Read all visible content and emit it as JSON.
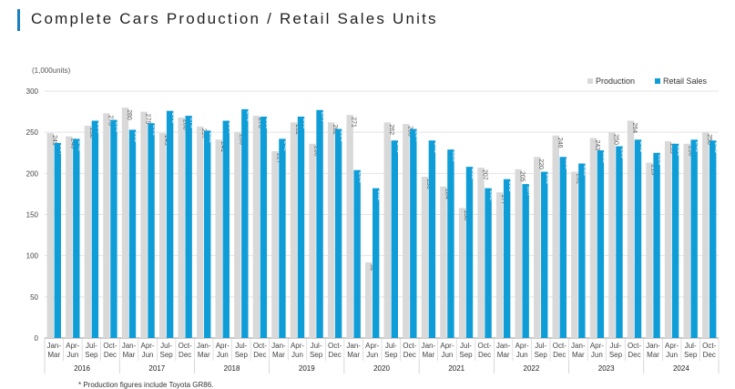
{
  "title": "Complete Cars Production / Retail Sales Units",
  "footnote": "* Production figures include Toyota GR86.",
  "chart_data": {
    "type": "bar",
    "unit_label": "(1,000units)",
    "ylim": [
      0,
      300
    ],
    "yticks": [
      0,
      50,
      100,
      150,
      200,
      250,
      300
    ],
    "quarter_labels": [
      [
        "Jan-",
        "Mar"
      ],
      [
        "Apr-",
        "Jun"
      ],
      [
        "Jul-",
        "Sep"
      ],
      [
        "Oct-",
        "Dec"
      ]
    ],
    "years": [
      "2016",
      "2017",
      "2018",
      "2019",
      "2020",
      "2021",
      "2022",
      "2023",
      "2024"
    ],
    "legend_position": "top-right",
    "series": [
      {
        "name": "Production",
        "color": "#d9d9d9",
        "values": [
          249,
          245,
          258,
          273,
          280,
          275,
          249,
          268,
          257,
          241,
          250,
          270,
          227,
          262,
          236,
          262,
          271,
          92,
          262,
          260,
          196,
          184,
          158,
          207,
          177,
          205,
          220,
          246,
          202,
          243,
          250,
          264,
          213,
          239,
          236,
          250
        ]
      },
      {
        "name": "Retail Sales",
        "color": "#0f9dd8",
        "values": [
          237,
          242,
          264,
          265,
          253,
          261,
          276,
          270,
          252,
          264,
          278,
          269,
          242,
          269,
          277,
          254,
          204,
          182,
          240,
          254,
          240,
          229,
          208,
          182,
          193,
          187,
          202,
          220,
          212,
          228,
          233,
          241,
          225,
          236,
          241,
          240
        ]
      }
    ]
  }
}
